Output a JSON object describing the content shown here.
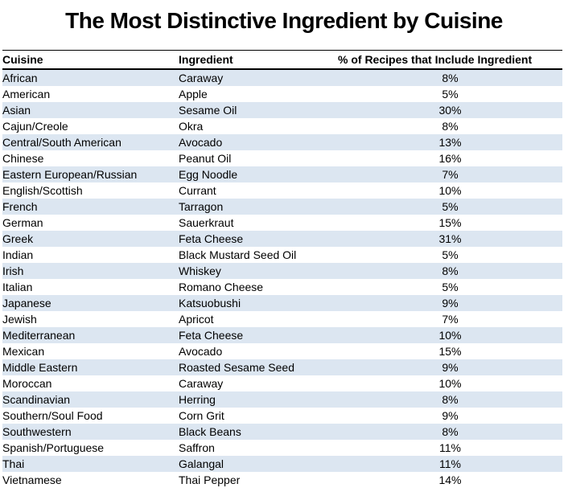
{
  "title": "The Most Distinctive Ingredient by Cuisine",
  "colors": {
    "band_row": "#dce6f1",
    "text": "#000000",
    "rule": "#000000",
    "background": "#ffffff"
  },
  "table": {
    "columns": [
      "Cuisine",
      "Ingredient",
      "% of Recipes that Include Ingredient"
    ],
    "rows": [
      {
        "cuisine": "African",
        "ingredient": "Caraway",
        "pct": "8%"
      },
      {
        "cuisine": "American",
        "ingredient": "Apple",
        "pct": "5%"
      },
      {
        "cuisine": "Asian",
        "ingredient": "Sesame Oil",
        "pct": "30%"
      },
      {
        "cuisine": "Cajun/Creole",
        "ingredient": "Okra",
        "pct": "8%"
      },
      {
        "cuisine": "Central/South American",
        "ingredient": "Avocado",
        "pct": "13%"
      },
      {
        "cuisine": "Chinese",
        "ingredient": "Peanut Oil",
        "pct": "16%"
      },
      {
        "cuisine": "Eastern European/Russian",
        "ingredient": "Egg Noodle",
        "pct": "7%"
      },
      {
        "cuisine": "English/Scottish",
        "ingredient": "Currant",
        "pct": "10%"
      },
      {
        "cuisine": "French",
        "ingredient": "Tarragon",
        "pct": "5%"
      },
      {
        "cuisine": "German",
        "ingredient": "Sauerkraut",
        "pct": "15%"
      },
      {
        "cuisine": "Greek",
        "ingredient": "Feta Cheese",
        "pct": "31%"
      },
      {
        "cuisine": "Indian",
        "ingredient": "Black Mustard Seed Oil",
        "pct": "5%"
      },
      {
        "cuisine": "Irish",
        "ingredient": "Whiskey",
        "pct": "8%"
      },
      {
        "cuisine": "Italian",
        "ingredient": "Romano Cheese",
        "pct": "5%"
      },
      {
        "cuisine": "Japanese",
        "ingredient": "Katsuobushi",
        "pct": "9%"
      },
      {
        "cuisine": "Jewish",
        "ingredient": "Apricot",
        "pct": "7%"
      },
      {
        "cuisine": "Mediterranean",
        "ingredient": "Feta Cheese",
        "pct": "10%"
      },
      {
        "cuisine": "Mexican",
        "ingredient": "Avocado",
        "pct": "15%"
      },
      {
        "cuisine": "Middle Eastern",
        "ingredient": "Roasted Sesame Seed",
        "pct": "9%"
      },
      {
        "cuisine": "Moroccan",
        "ingredient": "Caraway",
        "pct": "10%"
      },
      {
        "cuisine": "Scandinavian",
        "ingredient": "Herring",
        "pct": "8%"
      },
      {
        "cuisine": "Southern/Soul Food",
        "ingredient": "Corn Grit",
        "pct": "9%"
      },
      {
        "cuisine": "Southwestern",
        "ingredient": "Black Beans",
        "pct": "8%"
      },
      {
        "cuisine": "Spanish/Portuguese",
        "ingredient": "Saffron",
        "pct": "11%"
      },
      {
        "cuisine": "Thai",
        "ingredient": "Galangal",
        "pct": "11%"
      },
      {
        "cuisine": "Vietnamese",
        "ingredient": "Thai Pepper",
        "pct": "14%"
      }
    ]
  },
  "chart_data": {
    "type": "table",
    "title": "The Most Distinctive Ingredient by Cuisine",
    "columns": [
      "Cuisine",
      "Ingredient",
      "% of Recipes that Include Ingredient"
    ],
    "value_unit": "percent",
    "rows": [
      [
        "African",
        "Caraway",
        8
      ],
      [
        "American",
        "Apple",
        5
      ],
      [
        "Asian",
        "Sesame Oil",
        30
      ],
      [
        "Cajun/Creole",
        "Okra",
        8
      ],
      [
        "Central/South American",
        "Avocado",
        13
      ],
      [
        "Chinese",
        "Peanut Oil",
        16
      ],
      [
        "Eastern European/Russian",
        "Egg Noodle",
        7
      ],
      [
        "English/Scottish",
        "Currant",
        10
      ],
      [
        "French",
        "Tarragon",
        5
      ],
      [
        "German",
        "Sauerkraut",
        15
      ],
      [
        "Greek",
        "Feta Cheese",
        31
      ],
      [
        "Indian",
        "Black Mustard Seed Oil",
        5
      ],
      [
        "Irish",
        "Whiskey",
        8
      ],
      [
        "Italian",
        "Romano Cheese",
        5
      ],
      [
        "Japanese",
        "Katsuobushi",
        9
      ],
      [
        "Jewish",
        "Apricot",
        7
      ],
      [
        "Mediterranean",
        "Feta Cheese",
        10
      ],
      [
        "Mexican",
        "Avocado",
        15
      ],
      [
        "Middle Eastern",
        "Roasted Sesame Seed",
        9
      ],
      [
        "Moroccan",
        "Caraway",
        10
      ],
      [
        "Scandinavian",
        "Herring",
        8
      ],
      [
        "Southern/Soul Food",
        "Corn Grit",
        9
      ],
      [
        "Southwestern",
        "Black Beans",
        8
      ],
      [
        "Spanish/Portuguese",
        "Saffron",
        11
      ],
      [
        "Thai",
        "Galangal",
        11
      ],
      [
        "Vietnamese",
        "Thai Pepper",
        14
      ]
    ],
    "layout": {
      "banding": "odd rows shaded light blue",
      "header_rules": "black rule above and heavier black rule below header",
      "column_alignment": [
        "left",
        "left",
        "center"
      ]
    }
  }
}
